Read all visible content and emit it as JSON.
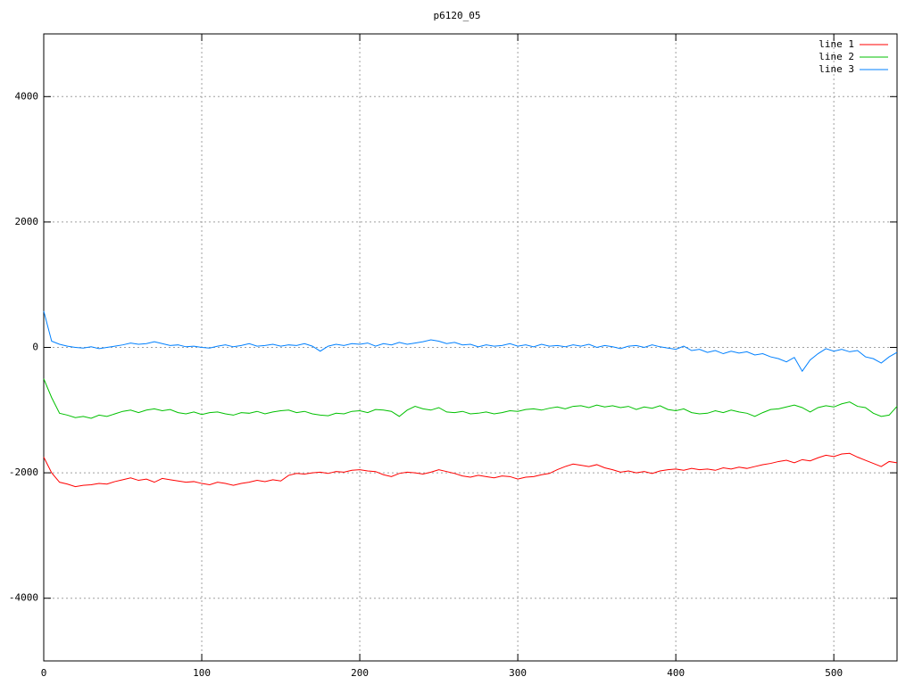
{
  "chart_data": {
    "type": "line",
    "title": "p6120_05",
    "x": [
      0,
      5,
      10,
      15,
      20,
      25,
      30,
      35,
      40,
      45,
      50,
      55,
      60,
      65,
      70,
      75,
      80,
      85,
      90,
      95,
      100,
      105,
      110,
      115,
      120,
      125,
      130,
      135,
      140,
      145,
      150,
      155,
      160,
      165,
      170,
      175,
      180,
      185,
      190,
      195,
      200,
      205,
      210,
      215,
      220,
      225,
      230,
      235,
      240,
      245,
      250,
      255,
      260,
      265,
      270,
      275,
      280,
      285,
      290,
      295,
      300,
      305,
      310,
      315,
      320,
      325,
      330,
      335,
      340,
      345,
      350,
      355,
      360,
      365,
      370,
      375,
      380,
      385,
      390,
      395,
      400,
      405,
      410,
      415,
      420,
      425,
      430,
      435,
      440,
      445,
      450,
      455,
      460,
      465,
      470,
      475,
      480,
      485,
      490,
      495,
      500,
      505,
      510,
      515,
      520,
      525,
      530,
      535,
      540
    ],
    "series": [
      {
        "name": "line 1",
        "color": "#ff0000",
        "values": [
          -1750,
          -2000,
          -2150,
          -2180,
          -2220,
          -2200,
          -2190,
          -2170,
          -2180,
          -2140,
          -2110,
          -2080,
          -2120,
          -2100,
          -2150,
          -2090,
          -2110,
          -2130,
          -2150,
          -2140,
          -2170,
          -2190,
          -2150,
          -2170,
          -2200,
          -2170,
          -2150,
          -2120,
          -2140,
          -2110,
          -2130,
          -2040,
          -2010,
          -2020,
          -2000,
          -1990,
          -2010,
          -1980,
          -1990,
          -1960,
          -1950,
          -1970,
          -1980,
          -2030,
          -2060,
          -2010,
          -1990,
          -2000,
          -2020,
          -1990,
          -1950,
          -1980,
          -2010,
          -2050,
          -2070,
          -2040,
          -2060,
          -2080,
          -2050,
          -2060,
          -2100,
          -2070,
          -2060,
          -2030,
          -2010,
          -1950,
          -1900,
          -1860,
          -1880,
          -1900,
          -1870,
          -1920,
          -1950,
          -1990,
          -1970,
          -2000,
          -1980,
          -2010,
          -1970,
          -1950,
          -1940,
          -1960,
          -1930,
          -1950,
          -1940,
          -1960,
          -1920,
          -1940,
          -1910,
          -1930,
          -1900,
          -1870,
          -1850,
          -1820,
          -1800,
          -1840,
          -1790,
          -1810,
          -1760,
          -1720,
          -1740,
          -1700,
          -1690,
          -1750,
          -1800,
          -1850,
          -1900,
          -1820,
          -1840
        ]
      },
      {
        "name": "line 2",
        "color": "#00c000",
        "values": [
          -500,
          -800,
          -1050,
          -1080,
          -1120,
          -1100,
          -1130,
          -1080,
          -1100,
          -1060,
          -1020,
          -1000,
          -1040,
          -1000,
          -980,
          -1010,
          -990,
          -1040,
          -1060,
          -1030,
          -1070,
          -1040,
          -1030,
          -1060,
          -1080,
          -1040,
          -1050,
          -1020,
          -1060,
          -1030,
          -1010,
          -1000,
          -1040,
          -1020,
          -1060,
          -1080,
          -1090,
          -1050,
          -1060,
          -1020,
          -1010,
          -1040,
          -990,
          -1000,
          -1020,
          -1100,
          -1000,
          -940,
          -980,
          -1000,
          -960,
          -1030,
          -1040,
          -1020,
          -1060,
          -1050,
          -1030,
          -1060,
          -1040,
          -1010,
          -1020,
          -990,
          -980,
          -1000,
          -970,
          -950,
          -980,
          -940,
          -930,
          -960,
          -920,
          -950,
          -930,
          -960,
          -940,
          -990,
          -950,
          -970,
          -930,
          -990,
          -1010,
          -980,
          -1040,
          -1060,
          -1050,
          -1010,
          -1040,
          -1000,
          -1030,
          -1050,
          -1100,
          -1040,
          -990,
          -980,
          -950,
          -920,
          -960,
          -1030,
          -960,
          -930,
          -950,
          -900,
          -870,
          -940,
          -960,
          -1050,
          -1100,
          -1080,
          -940
        ]
      },
      {
        "name": "line 3",
        "color": "#0080ff",
        "values": [
          580,
          100,
          50,
          20,
          0,
          -10,
          10,
          -20,
          0,
          20,
          40,
          70,
          50,
          60,
          90,
          60,
          30,
          40,
          10,
          20,
          0,
          -10,
          20,
          40,
          10,
          30,
          60,
          20,
          30,
          50,
          20,
          40,
          30,
          60,
          20,
          -60,
          20,
          50,
          30,
          60,
          50,
          70,
          20,
          60,
          40,
          80,
          50,
          70,
          90,
          120,
          100,
          60,
          80,
          40,
          50,
          10,
          40,
          20,
          30,
          60,
          20,
          40,
          10,
          50,
          20,
          30,
          10,
          40,
          20,
          50,
          0,
          30,
          10,
          -20,
          20,
          30,
          0,
          40,
          10,
          -10,
          -30,
          20,
          -50,
          -30,
          -80,
          -50,
          -100,
          -60,
          -90,
          -70,
          -120,
          -100,
          -150,
          -180,
          -230,
          -160,
          -380,
          -200,
          -100,
          -20,
          -60,
          -30,
          -70,
          -50,
          -150,
          -180,
          -250,
          -150,
          -80
        ]
      }
    ],
    "xlim": [
      0,
      540
    ],
    "ylim": [
      -5000,
      5000
    ],
    "xticks": [
      0,
      100,
      200,
      300,
      400,
      500
    ],
    "yticks": [
      -4000,
      -2000,
      0,
      2000,
      4000
    ],
    "grid": true,
    "legend": "upper right"
  }
}
